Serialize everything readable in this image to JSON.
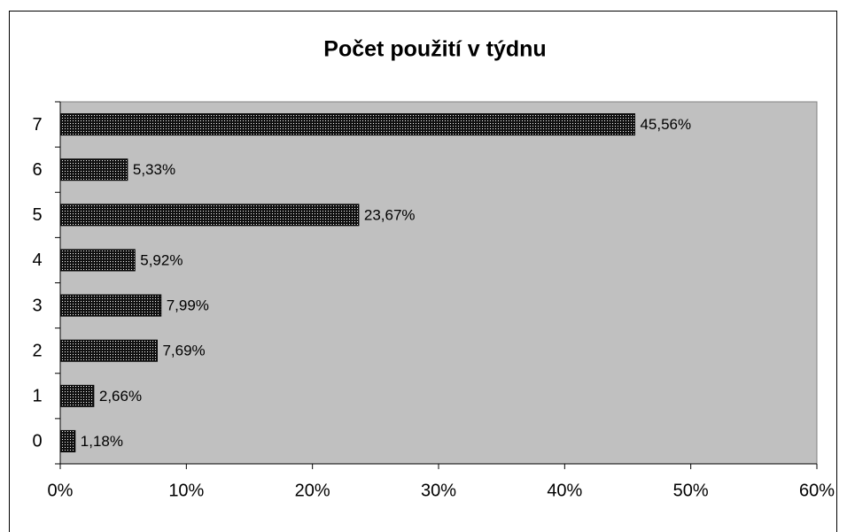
{
  "chart_data": {
    "type": "bar",
    "orientation": "horizontal",
    "title": "Počet použití v týdnu",
    "categories": [
      "0",
      "1",
      "2",
      "3",
      "4",
      "5",
      "6",
      "7"
    ],
    "values": [
      1.18,
      2.66,
      7.69,
      7.99,
      5.92,
      23.67,
      5.33,
      45.56
    ],
    "value_labels": [
      "1,18%",
      "2,66%",
      "7,69%",
      "7,99%",
      "5,92%",
      "23,67%",
      "5,33%",
      "45,56%"
    ],
    "color": "#111111",
    "xlim": [
      0,
      60
    ],
    "xticks": [
      {
        "value": 0,
        "label": "0%"
      },
      {
        "value": 10,
        "label": "10%"
      },
      {
        "value": 20,
        "label": "20%"
      },
      {
        "value": 30,
        "label": "30%"
      },
      {
        "value": 40,
        "label": "40%"
      },
      {
        "value": 50,
        "label": "50%"
      },
      {
        "value": 60,
        "label": "60%"
      }
    ],
    "grid": false
  }
}
